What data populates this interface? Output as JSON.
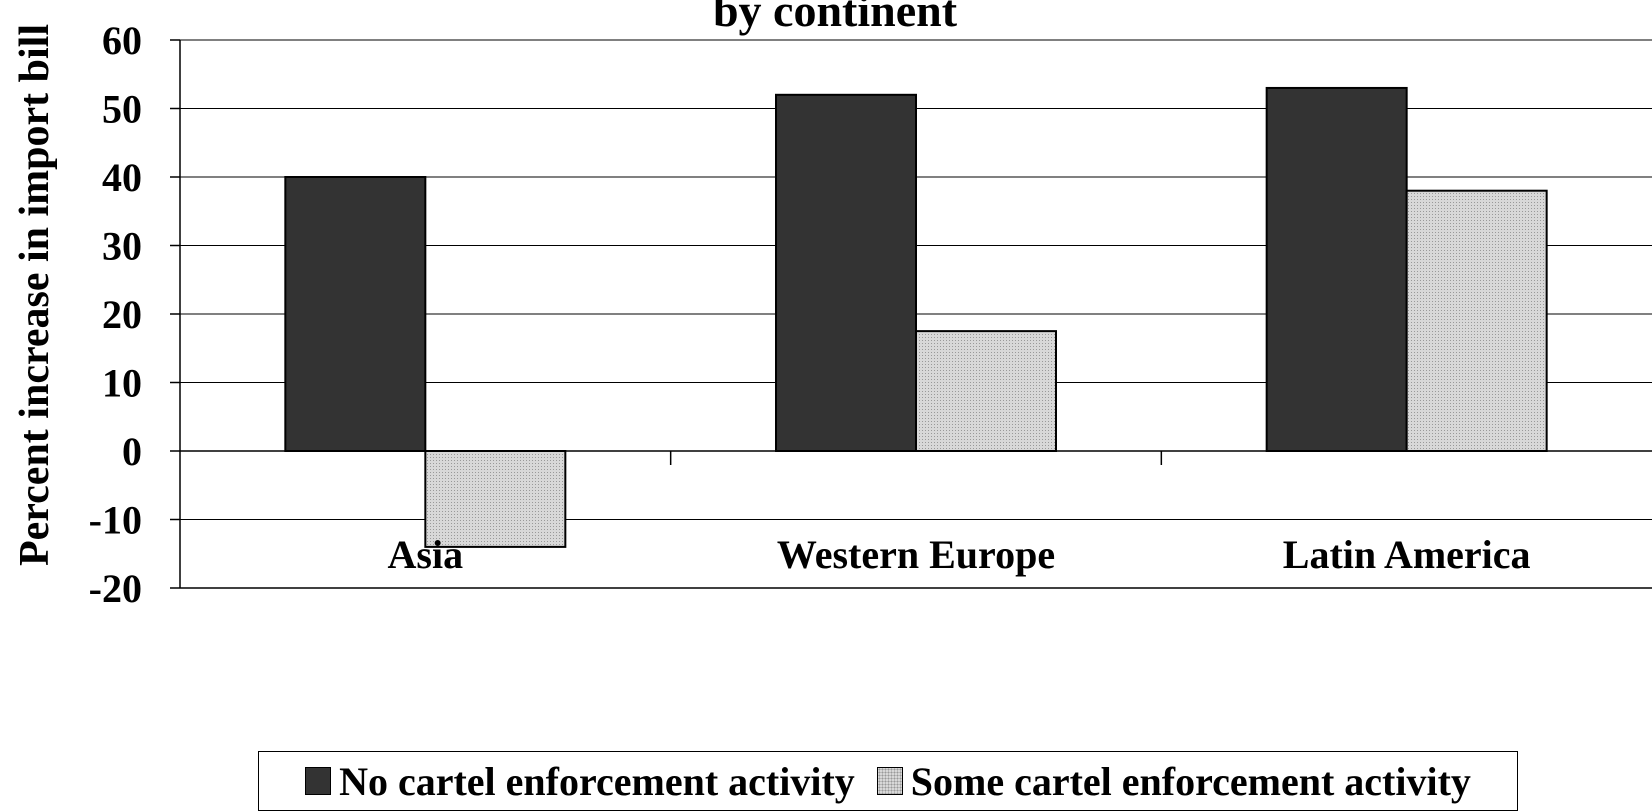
{
  "chart_data": {
    "type": "bar",
    "title": "by continent",
    "ylabel": "Percent increase in import bill",
    "xlabel": "",
    "categories": [
      "Asia",
      "Western Europe",
      "Latin America"
    ],
    "series": [
      {
        "name": "No cartel enforcement activity",
        "values": [
          40,
          52,
          53
        ],
        "color": "#333333"
      },
      {
        "name": "Some cartel enforcement activity",
        "values": [
          -14,
          17.5,
          38
        ],
        "color": "#d8d8d8"
      }
    ],
    "ylim": [
      -20,
      60
    ],
    "yticks": [
      "60",
      "50",
      "40",
      "30",
      "20",
      "10",
      "0",
      "-10",
      "-20"
    ],
    "grid": true,
    "legend_position": "bottom"
  }
}
